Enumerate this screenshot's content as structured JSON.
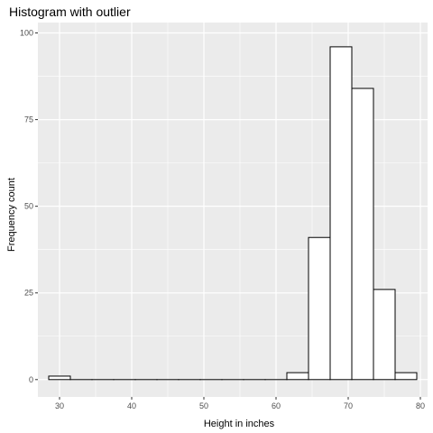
{
  "chart_data": {
    "type": "bar",
    "title": "Histogram with outlier",
    "xlabel": "Height in inches",
    "ylabel": "Frequency count",
    "xlim": [
      27,
      81
    ],
    "ylim": [
      -5,
      103
    ],
    "xticks": [
      30,
      40,
      50,
      60,
      70,
      80
    ],
    "yticks": [
      0,
      25,
      50,
      75,
      100
    ],
    "bin_width": 3,
    "bins": [
      {
        "start": 28.5,
        "end": 31.5,
        "count": 1
      },
      {
        "start": 31.5,
        "end": 34.5,
        "count": 0
      },
      {
        "start": 34.5,
        "end": 37.5,
        "count": 0
      },
      {
        "start": 37.5,
        "end": 40.5,
        "count": 0
      },
      {
        "start": 40.5,
        "end": 43.5,
        "count": 0
      },
      {
        "start": 43.5,
        "end": 46.5,
        "count": 0
      },
      {
        "start": 46.5,
        "end": 49.5,
        "count": 0
      },
      {
        "start": 49.5,
        "end": 52.5,
        "count": 0
      },
      {
        "start": 52.5,
        "end": 55.5,
        "count": 0
      },
      {
        "start": 55.5,
        "end": 58.5,
        "count": 0
      },
      {
        "start": 58.5,
        "end": 61.5,
        "count": 0
      },
      {
        "start": 61.5,
        "end": 64.5,
        "count": 2
      },
      {
        "start": 64.5,
        "end": 67.5,
        "count": 41
      },
      {
        "start": 67.5,
        "end": 70.5,
        "count": 96
      },
      {
        "start": 70.5,
        "end": 73.5,
        "count": 84
      },
      {
        "start": 73.5,
        "end": 76.5,
        "count": 26
      },
      {
        "start": 76.5,
        "end": 79.5,
        "count": 2
      }
    ],
    "grid": true,
    "panel_background": "#ebebeb",
    "bar_fill": "#ffffff",
    "bar_outline": "#000000"
  }
}
